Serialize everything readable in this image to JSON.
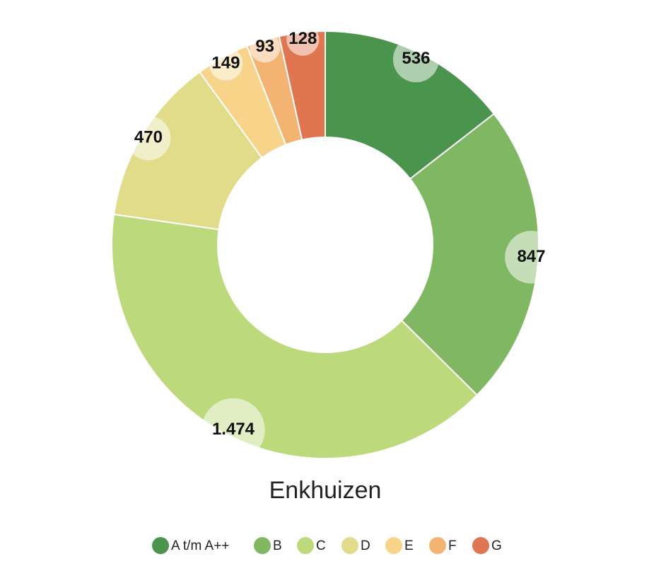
{
  "chart_data": {
    "type": "donut",
    "title": "Enkhuizen",
    "categories": [
      "A t/m A++",
      "B",
      "C",
      "D",
      "E",
      "F",
      "G"
    ],
    "values": [
      536,
      847,
      1474,
      470,
      149,
      93,
      128
    ],
    "value_labels": [
      "536",
      "847",
      "1.474",
      "470",
      "149",
      "93",
      "128"
    ],
    "colors": [
      "#4a944d",
      "#7fb762",
      "#bcd97c",
      "#e0dc8a",
      "#f7d48a",
      "#f3b473",
      "#e07552"
    ]
  }
}
